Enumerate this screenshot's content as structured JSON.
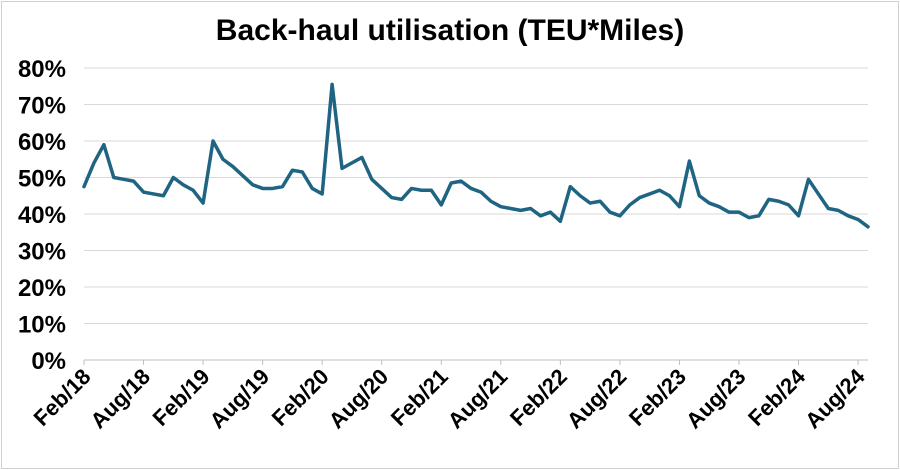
{
  "chart_data": {
    "type": "line",
    "title": "Back-haul utilisation (TEU*Miles)",
    "xlabel": "",
    "ylabel": "",
    "ylim": [
      0,
      80
    ],
    "grid": true,
    "legend": "none",
    "line_color": "#1f6482",
    "y_ticks": [
      "0%",
      "10%",
      "20%",
      "30%",
      "40%",
      "50%",
      "60%",
      "70%",
      "80%"
    ],
    "x_ticks": [
      "Feb/18",
      "Aug/18",
      "Feb/19",
      "Aug/19",
      "Feb/20",
      "Aug/20",
      "Feb/21",
      "Aug/21",
      "Feb/22",
      "Aug/22",
      "Feb/23",
      "Aug/23",
      "Feb/24",
      "Aug/24"
    ],
    "x_start": "Feb/18",
    "x_end": "Aug/24",
    "series": [
      {
        "values": [
          47.5,
          54,
          59,
          50,
          49.5,
          49,
          46,
          45.5,
          45,
          50,
          48,
          46.5,
          43,
          60,
          55,
          53,
          50.5,
          48,
          47,
          47,
          47.5,
          52,
          51.5,
          47,
          45.5,
          75.5,
          52.5,
          54,
          55.5,
          49.5,
          47,
          44.5,
          44,
          47,
          46.5,
          46.5,
          42.5,
          48.5,
          49,
          47,
          46,
          43.5,
          42,
          41.5,
          41,
          41.5,
          39.5,
          40.5,
          38,
          47.5,
          45,
          43,
          43.5,
          40.5,
          39.5,
          42.5,
          44.5,
          45.5,
          46.5,
          45,
          42,
          54.5,
          45,
          43,
          42,
          40.5,
          40.5,
          39,
          39.5,
          44,
          43.5,
          42.5,
          39.5,
          49.5,
          45.5,
          41.5,
          41,
          39.5,
          38.5,
          36.5
        ]
      }
    ]
  }
}
